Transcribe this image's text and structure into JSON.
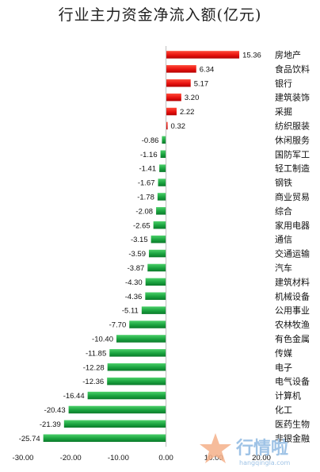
{
  "chart_data": {
    "type": "bar",
    "orientation": "horizontal",
    "title": "行业主力资金净流入额(亿元)",
    "categories": [
      "房地产",
      "食品饮料",
      "银行",
      "建筑装饰",
      "采掘",
      "纺织服装",
      "休闲服务",
      "国防军工",
      "轻工制造",
      "钢铁",
      "商业贸易",
      "综合",
      "家用电器",
      "通信",
      "交通运输",
      "汽车",
      "建筑材料",
      "机械设备",
      "公用事业",
      "农林牧渔",
      "有色金属",
      "传媒",
      "电子",
      "电气设备",
      "计算机",
      "化工",
      "医药生物",
      "非银金融"
    ],
    "values": [
      15.36,
      6.34,
      5.17,
      3.2,
      2.22,
      0.32,
      -0.86,
      -1.16,
      -1.41,
      -1.67,
      -1.78,
      -2.08,
      -2.65,
      -3.15,
      -3.59,
      -3.87,
      -4.3,
      -4.36,
      -5.11,
      -7.7,
      -10.4,
      -11.85,
      -12.28,
      -12.36,
      -16.44,
      -20.43,
      -21.39,
      -25.74
    ],
    "value_labels": [
      "15.36",
      "6.34",
      "5.17",
      "3.20",
      "2.22",
      "0.32",
      "-0.86",
      "-1.16",
      "-1.41",
      "-1.67",
      "-1.78",
      "-2.08",
      "-2.65",
      "-3.15",
      "-3.59",
      "-3.87",
      "-4.30",
      "-4.36",
      "-5.11",
      "-7.70",
      "-10.40",
      "-11.85",
      "-12.28",
      "-12.36",
      "-16.44",
      "-20.43",
      "-21.39",
      "-25.74"
    ],
    "xlim": [
      -30,
      20
    ],
    "x_ticks": [
      -30,
      -20,
      -10,
      0,
      10,
      20
    ],
    "x_tick_labels": [
      "-30.00",
      "-20.00",
      "-10.00",
      "0.00",
      "10.00",
      "20.00"
    ],
    "grid": false,
    "legend": "none",
    "colors": {
      "positive": "#e8120f",
      "negative": "#1aa33f"
    }
  },
  "watermark": {
    "text": "行情啦",
    "subtext": "hangqingla.com"
  }
}
